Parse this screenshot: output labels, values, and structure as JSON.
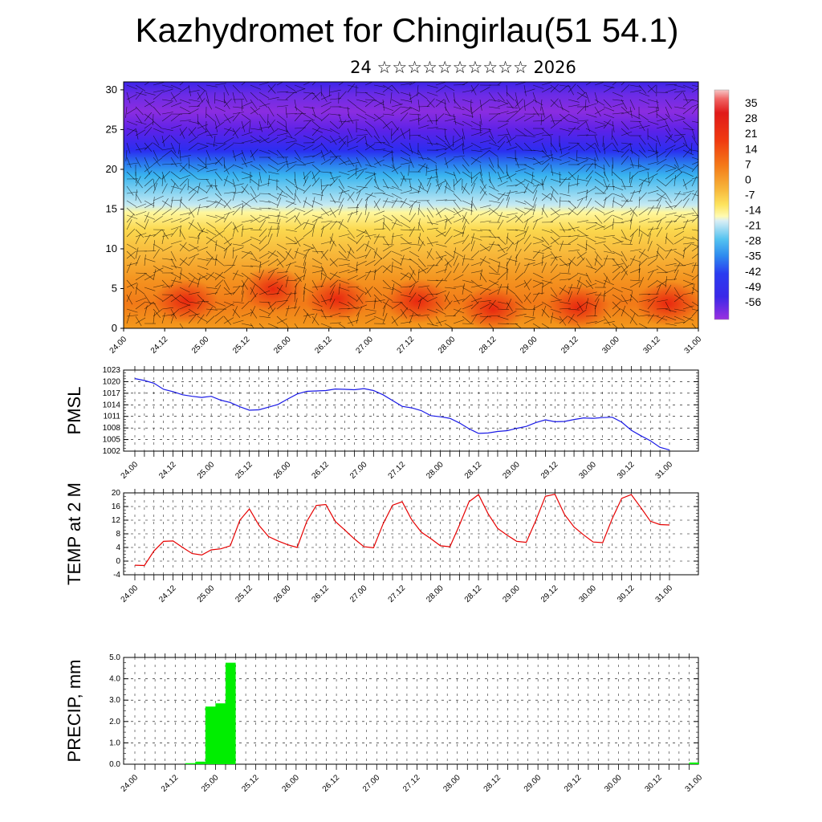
{
  "title": "Kazhydromet for Chingirlau(51 54.1)",
  "subtitle": "24 ☆☆☆☆☆☆☆☆☆☆ 2026",
  "colors": {
    "pmsl_line": "#1a1ae6",
    "temp_line": "#e60000",
    "precip_bar": "#00ee00",
    "grid": "#000000"
  },
  "time_ticks": [
    "24.00",
    "24.12",
    "25.00",
    "25.12",
    "26.00",
    "26.12",
    "27.00",
    "27.12",
    "28.00",
    "28.12",
    "29.00",
    "29.12",
    "30.00",
    "30.12",
    "31.00"
  ],
  "chart_data": [
    {
      "type": "heatmap",
      "name": "cross-section",
      "xticks": [
        "24.00",
        "24.12",
        "25.00",
        "25.12",
        "26.00",
        "26.12",
        "27.00",
        "27.12",
        "28.00",
        "28.12",
        "29.00",
        "29.12",
        "30.00",
        "30.12",
        "31.00"
      ],
      "yticks": [
        "0",
        "5",
        "10",
        "15",
        "20",
        "25",
        "30"
      ],
      "ylim": [
        0,
        31
      ],
      "colorbar_labels": [
        "35",
        "28",
        "21",
        "14",
        "7",
        "0",
        "-7",
        "-14",
        "-21",
        "-28",
        "-35",
        "-42",
        "-49",
        "-56"
      ],
      "colorbar_range": [
        -63,
        42
      ],
      "temperature_profile_by_level": [
        {
          "level": 0,
          "value": 16
        },
        {
          "level": 5,
          "value": 14
        },
        {
          "level": 10,
          "value": 7
        },
        {
          "level": 14,
          "value": -6
        },
        {
          "level": 16,
          "value": -14
        },
        {
          "level": 19,
          "value": -28
        },
        {
          "level": 21,
          "value": -42
        },
        {
          "level": 23,
          "value": -56
        },
        {
          "level": 31,
          "value": -58
        }
      ]
    },
    {
      "type": "line",
      "name": "PMSL",
      "ylabel": "PMSL",
      "yticks": [
        "1002",
        "1005",
        "1008",
        "1011",
        "1014",
        "1017",
        "1020",
        "1023"
      ],
      "ylim": [
        1002,
        1023
      ],
      "x": [
        0,
        1,
        2,
        3,
        4,
        5,
        6,
        7,
        8,
        9,
        10,
        11,
        12,
        13,
        14,
        15,
        16,
        17,
        18,
        19,
        20,
        21,
        22,
        23,
        24,
        25,
        26,
        27,
        28,
        29,
        30,
        31,
        32,
        33,
        34,
        35,
        36,
        37,
        38,
        39,
        40,
        41,
        42,
        43,
        44,
        45,
        46,
        47,
        48,
        49,
        50,
        51,
        52,
        53,
        54,
        55,
        56
      ],
      "values": [
        1020.8,
        1020.3,
        1019.6,
        1018,
        1017.4,
        1016.6,
        1016.2,
        1015.9,
        1016.2,
        1015.2,
        1014.6,
        1013.5,
        1012.6,
        1012.7,
        1013.4,
        1014.1,
        1015.5,
        1016.8,
        1017.5,
        1017.6,
        1017.7,
        1018.1,
        1018,
        1017.9,
        1018.2,
        1017.7,
        1016.6,
        1015.1,
        1013.6,
        1013.2,
        1012.5,
        1011.2,
        1010.9,
        1010.5,
        1009.3,
        1007.8,
        1006.6,
        1006.7,
        1007.1,
        1007.3,
        1007.9,
        1008.4,
        1009.4,
        1010.1,
        1009.6,
        1009.7,
        1010.2,
        1010.6,
        1010.5,
        1010.7,
        1010.8,
        1009.5,
        1007.4,
        1006,
        1004.7,
        1003,
        1002.3
      ]
    },
    {
      "type": "line",
      "name": "TEMP at 2 M",
      "ylabel": "TEMP at 2 M",
      "yticks": [
        "-4",
        "0",
        "4",
        "8",
        "12",
        "16",
        "20"
      ],
      "ylim": [
        -4,
        20
      ],
      "x": [
        0,
        1,
        2,
        3,
        4,
        5,
        6,
        7,
        8,
        9,
        10,
        11,
        12,
        13,
        14,
        15,
        16,
        17,
        18,
        19,
        20,
        21,
        22,
        23,
        24,
        25,
        26,
        27,
        28,
        29,
        30,
        31,
        32,
        33,
        34,
        35,
        36,
        37,
        38,
        39,
        40,
        41,
        42,
        43,
        44,
        45,
        46,
        47,
        48,
        49,
        50,
        51,
        52,
        53,
        54,
        55,
        56
      ],
      "values": [
        -1.2,
        -1.3,
        3,
        5.8,
        5.9,
        4,
        2.2,
        1.8,
        3.3,
        3.6,
        4.5,
        12,
        15.3,
        10.5,
        7.2,
        5.9,
        4.8,
        4,
        11.6,
        16.3,
        16.6,
        11.6,
        9.1,
        6.5,
        4.2,
        3.9,
        10.9,
        16.4,
        17.4,
        12.1,
        8.5,
        6.6,
        4.5,
        4.2,
        10.6,
        17.4,
        19.5,
        13.9,
        9.6,
        7.6,
        5.8,
        5.5,
        11.9,
        19,
        19.6,
        13.7,
        10,
        7.7,
        5.6,
        5.4,
        12.4,
        18.4,
        19.5,
        15.7,
        11.7,
        10.7,
        10.6
      ]
    },
    {
      "type": "bar",
      "name": "PRECIP, mm",
      "ylabel": "PRECIP, mm",
      "yticks": [
        "0.0",
        "1.0",
        "2.0",
        "3.0",
        "4.0",
        "5.0"
      ],
      "ylim": [
        0,
        5
      ],
      "x": [
        0,
        1,
        2,
        3,
        4,
        5,
        6,
        7,
        8,
        9,
        10,
        11,
        12,
        13,
        14,
        15,
        16,
        17,
        18,
        19,
        20,
        21,
        22,
        23,
        24,
        25,
        26,
        27,
        28,
        29,
        30,
        31,
        32,
        33,
        34,
        35,
        36,
        37,
        38,
        39,
        40,
        41,
        42,
        43,
        44,
        45,
        46,
        47,
        48,
        49,
        50,
        51,
        52,
        53,
        54,
        55,
        56
      ],
      "values": [
        0,
        0,
        0,
        0,
        0,
        0,
        0.05,
        0.12,
        2.7,
        2.85,
        4.75,
        0,
        0,
        0,
        0,
        0,
        0,
        0,
        0,
        0,
        0,
        0,
        0,
        0,
        0,
        0,
        0,
        0,
        0,
        0,
        0,
        0,
        0,
        0,
        0,
        0,
        0,
        0,
        0,
        0,
        0,
        0,
        0,
        0,
        0,
        0,
        0,
        0,
        0,
        0,
        0,
        0,
        0,
        0,
        0,
        0,
        0.08
      ]
    }
  ]
}
